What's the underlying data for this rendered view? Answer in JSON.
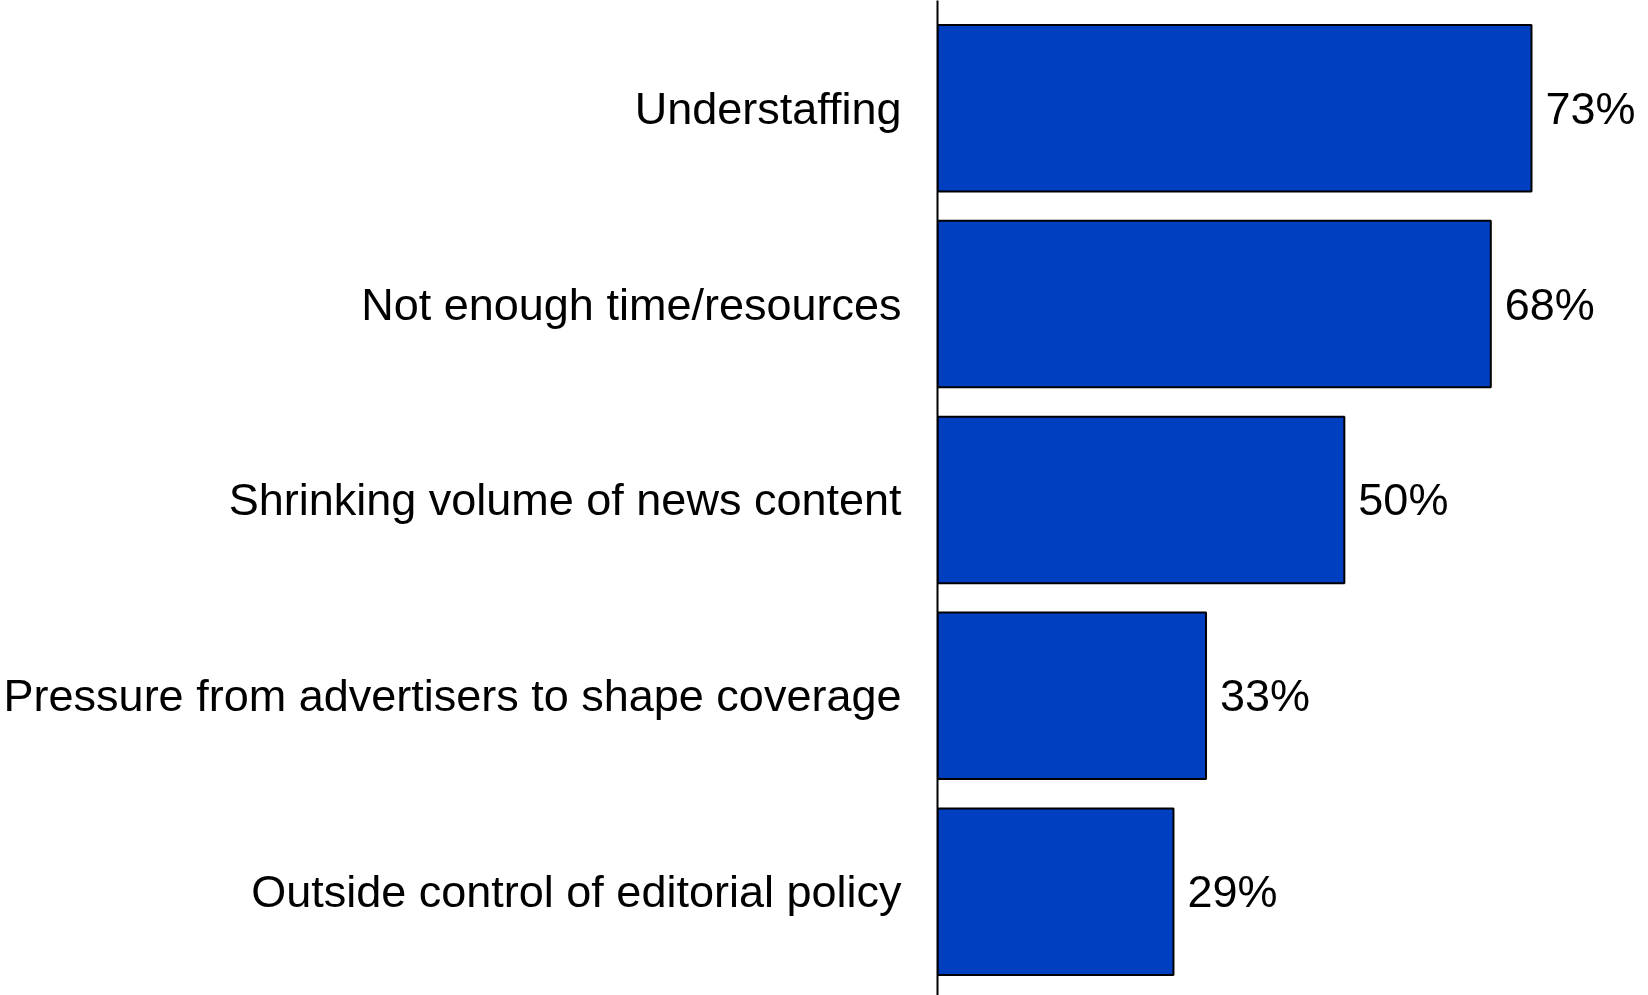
{
  "chart_data": {
    "type": "bar",
    "orientation": "horizontal",
    "categories": [
      "Understaffing",
      "Not enough time/resources",
      "Shrinking volume of news content",
      "Pressure from advertisers to shape coverage",
      "Outside control of editorial policy"
    ],
    "values": [
      73,
      68,
      50,
      33,
      29
    ],
    "value_labels": [
      "73%",
      "68%",
      "50%",
      "33%",
      "29%"
    ],
    "color": "#0040c0"
  }
}
